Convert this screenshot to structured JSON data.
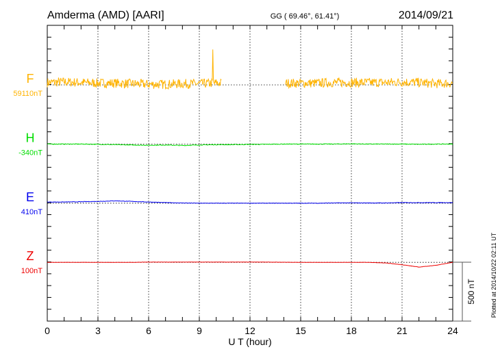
{
  "chart_data": {
    "type": "line",
    "title": "Amderma (AMD)  [AARI]",
    "coords": "GG ( 69.46°,  61.41°)",
    "date": "2014/09/21",
    "xlabel": "U T (hour)",
    "xlim": [
      0,
      24
    ],
    "xticks": [
      "0",
      "3",
      "6",
      "9",
      "12",
      "15",
      "18",
      "21",
      "24"
    ],
    "scale_bar": "500 nT",
    "scale_bar_nT": 500,
    "plotted_note": "Plotted at 2014/10/22 02:11 UT",
    "series": [
      {
        "name": "F",
        "baseline_label": "59110nT",
        "color": "#ffb300",
        "noise_nT": 40,
        "gap_hours": [
          10.3,
          14.1
        ],
        "spike": {
          "hour": 9.8,
          "nT": 300
        },
        "hourly_offset_nT": [
          20,
          25,
          20,
          15,
          15,
          10,
          5,
          5,
          10,
          10,
          15,
          null,
          null,
          null,
          null,
          15,
          15,
          20,
          20,
          20,
          20,
          25,
          20,
          10,
          15
        ]
      },
      {
        "name": "H",
        "baseline_label": "-340nT",
        "color": "#00dd00",
        "noise_nT": 3,
        "hourly_offset_nT": [
          0,
          0,
          0,
          -2,
          -5,
          -8,
          -10,
          -8,
          -12,
          -8,
          -5,
          -5,
          -3,
          -2,
          0,
          0,
          0,
          0,
          2,
          0,
          0,
          0,
          -2,
          0,
          0
        ]
      },
      {
        "name": "E",
        "baseline_label": "410nT",
        "color": "#0000ee",
        "noise_nT": 2,
        "hourly_offset_nT": [
          10,
          10,
          12,
          15,
          20,
          15,
          10,
          5,
          2,
          0,
          0,
          0,
          0,
          0,
          0,
          0,
          0,
          2,
          3,
          2,
          2,
          5,
          5,
          5,
          5
        ]
      },
      {
        "name": "Z",
        "baseline_label": "100nT",
        "color": "#ee0000",
        "noise_nT": 1,
        "hourly_offset_nT": [
          0,
          0,
          0,
          0,
          0,
          0,
          2,
          2,
          2,
          2,
          2,
          2,
          2,
          2,
          1,
          0,
          0,
          0,
          0,
          0,
          -5,
          -20,
          -40,
          -25,
          0
        ]
      }
    ]
  }
}
